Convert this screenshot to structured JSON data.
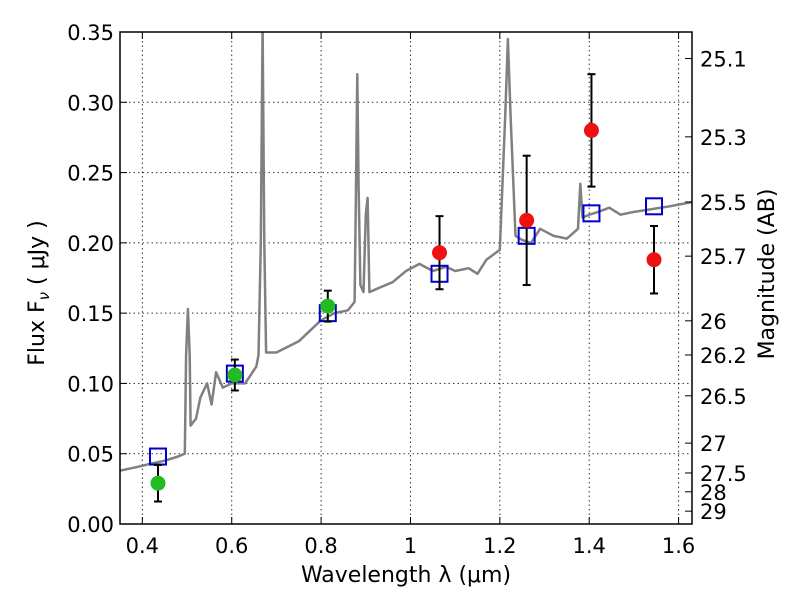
{
  "chart_data": {
    "type": "scatter",
    "xlabel": "Wavelength  λ (μm)",
    "ylabel": "Flux  F",
    "ylabel_sub": "ν",
    "ylabel_tail": " ( μJy )",
    "y2label": "Magnitude (AB)",
    "xlim": [
      0.35,
      1.63
    ],
    "ylim": [
      0,
      0.35
    ],
    "grid": true,
    "xticks": [
      {
        "v": 0.4,
        "label": "0.4"
      },
      {
        "v": 0.6,
        "label": "0.6"
      },
      {
        "v": 0.8,
        "label": "0.8"
      },
      {
        "v": 1.0,
        "label": "1"
      },
      {
        "v": 1.2,
        "label": "1.2"
      },
      {
        "v": 1.4,
        "label": "1.4"
      },
      {
        "v": 1.6,
        "label": "1.6"
      }
    ],
    "yticks": [
      {
        "v": 0.0,
        "label": "0.00"
      },
      {
        "v": 0.05,
        "label": "0.05"
      },
      {
        "v": 0.1,
        "label": "0.10"
      },
      {
        "v": 0.15,
        "label": "0.15"
      },
      {
        "v": 0.2,
        "label": "0.20"
      },
      {
        "v": 0.25,
        "label": "0.25"
      },
      {
        "v": 0.3,
        "label": "0.30"
      },
      {
        "v": 0.35,
        "label": "0.35"
      }
    ],
    "magticks": [
      "25.1",
      "25.3",
      "25.5",
      "25.7",
      "26",
      "26.2",
      "26.5",
      "27",
      "27.5",
      "28",
      "29"
    ],
    "spectrum": {
      "color": "#808080",
      "points": [
        [
          0.35,
          0.038
        ],
        [
          0.38,
          0.04
        ],
        [
          0.42,
          0.043
        ],
        [
          0.45,
          0.045
        ],
        [
          0.48,
          0.048
        ],
        [
          0.495,
          0.05
        ],
        [
          0.498,
          0.12
        ],
        [
          0.502,
          0.153
        ],
        [
          0.506,
          0.12
        ],
        [
          0.508,
          0.07
        ],
        [
          0.52,
          0.075
        ],
        [
          0.53,
          0.09
        ],
        [
          0.545,
          0.1
        ],
        [
          0.555,
          0.085
        ],
        [
          0.565,
          0.108
        ],
        [
          0.58,
          0.097
        ],
        [
          0.6,
          0.1
        ],
        [
          0.63,
          0.1
        ],
        [
          0.655,
          0.112
        ],
        [
          0.66,
          0.12
        ],
        [
          0.665,
          0.2
        ],
        [
          0.669,
          0.355
        ],
        [
          0.673,
          0.2
        ],
        [
          0.677,
          0.122
        ],
        [
          0.7,
          0.122
        ],
        [
          0.75,
          0.13
        ],
        [
          0.8,
          0.145
        ],
        [
          0.83,
          0.15
        ],
        [
          0.86,
          0.152
        ],
        [
          0.875,
          0.158
        ],
        [
          0.878,
          0.24
        ],
        [
          0.881,
          0.32
        ],
        [
          0.884,
          0.24
        ],
        [
          0.888,
          0.17
        ],
        [
          0.895,
          0.165
        ],
        [
          0.9,
          0.22
        ],
        [
          0.904,
          0.232
        ],
        [
          0.908,
          0.165
        ],
        [
          0.93,
          0.168
        ],
        [
          0.96,
          0.172
        ],
        [
          0.99,
          0.18
        ],
        [
          1.02,
          0.185
        ],
        [
          1.05,
          0.18
        ],
        [
          1.08,
          0.183
        ],
        [
          1.1,
          0.18
        ],
        [
          1.13,
          0.182
        ],
        [
          1.15,
          0.178
        ],
        [
          1.17,
          0.188
        ],
        [
          1.2,
          0.195
        ],
        [
          1.212,
          0.29
        ],
        [
          1.218,
          0.345
        ],
        [
          1.224,
          0.29
        ],
        [
          1.235,
          0.205
        ],
        [
          1.25,
          0.202
        ],
        [
          1.27,
          0.2
        ],
        [
          1.29,
          0.21
        ],
        [
          1.32,
          0.205
        ],
        [
          1.35,
          0.203
        ],
        [
          1.375,
          0.21
        ],
        [
          1.38,
          0.242
        ],
        [
          1.385,
          0.218
        ],
        [
          1.4,
          0.22
        ],
        [
          1.42,
          0.222
        ],
        [
          1.445,
          0.225
        ],
        [
          1.47,
          0.22
        ],
        [
          1.5,
          0.222
        ],
        [
          1.54,
          0.224
        ],
        [
          1.58,
          0.226
        ],
        [
          1.63,
          0.229
        ]
      ]
    },
    "series": [
      {
        "marker": "square",
        "color": "#0000cc",
        "points": [
          {
            "x": 0.435,
            "y": 0.048
          },
          {
            "x": 0.607,
            "y": 0.107
          },
          {
            "x": 0.815,
            "y": 0.15
          },
          {
            "x": 1.065,
            "y": 0.178
          },
          {
            "x": 1.26,
            "y": 0.205
          },
          {
            "x": 1.405,
            "y": 0.221
          },
          {
            "x": 1.545,
            "y": 0.226
          }
        ]
      },
      {
        "marker": "circle",
        "color": "#22bb22",
        "points": [
          {
            "x": 0.435,
            "y": 0.029,
            "err": 0.013
          },
          {
            "x": 0.607,
            "y": 0.106,
            "err": 0.011
          },
          {
            "x": 0.815,
            "y": 0.155,
            "err": 0.011
          }
        ]
      },
      {
        "marker": "circle",
        "color": "#ee1111",
        "points": [
          {
            "x": 1.065,
            "y": 0.193,
            "err": 0.026
          },
          {
            "x": 1.26,
            "y": 0.216,
            "err": 0.046
          },
          {
            "x": 1.405,
            "y": 0.28,
            "err": 0.04
          },
          {
            "x": 1.545,
            "y": 0.188,
            "err": 0.024
          }
        ]
      }
    ]
  }
}
